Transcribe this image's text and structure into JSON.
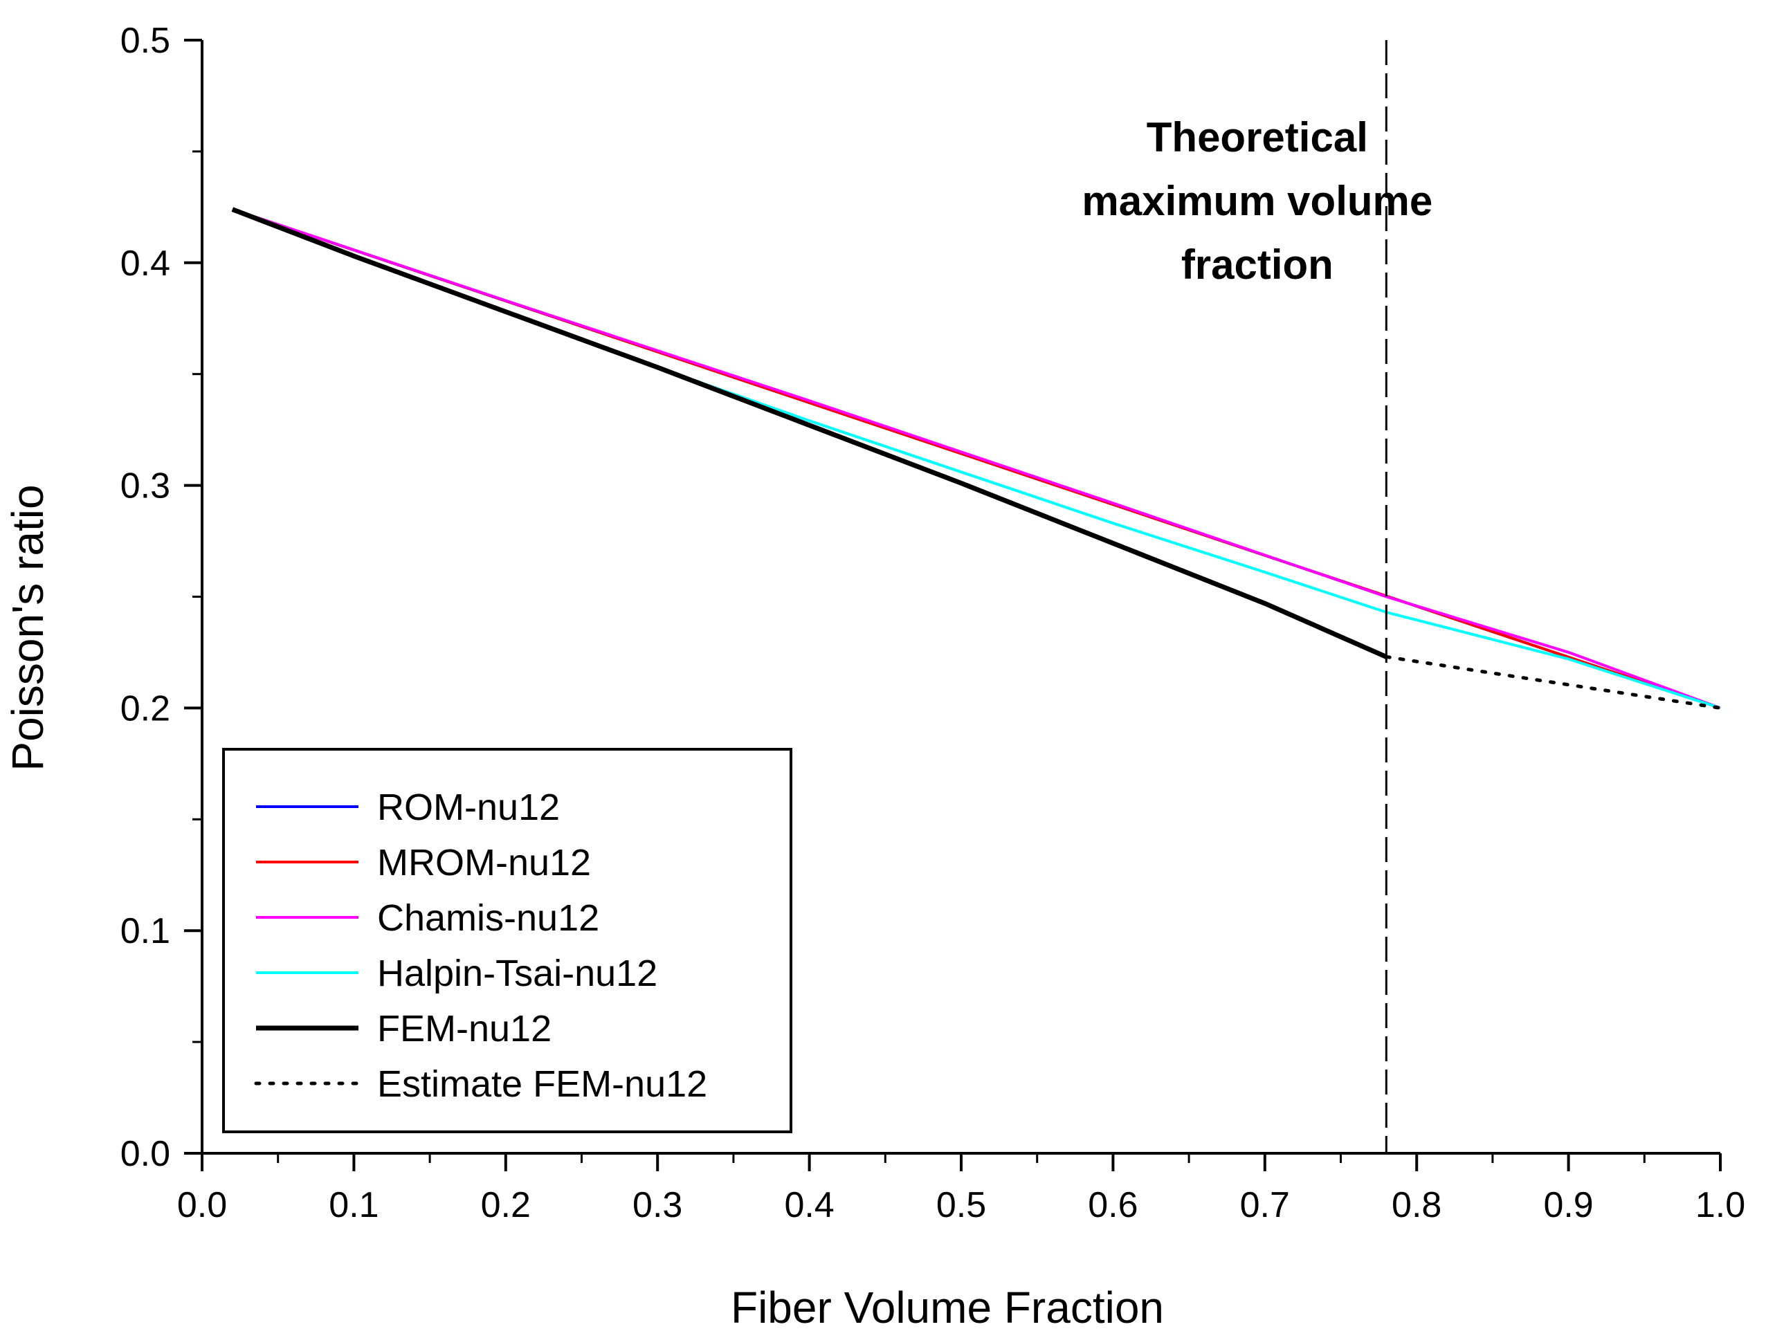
{
  "chart_data": {
    "type": "line",
    "title": "",
    "xlabel": "Fiber Volume Fraction",
    "ylabel": "Poisson's ratio",
    "xlim": [
      0.0,
      1.0
    ],
    "ylim": [
      0.0,
      0.5
    ],
    "x_ticks": [
      "0.0",
      "0.1",
      "0.2",
      "0.3",
      "0.4",
      "0.5",
      "0.6",
      "0.7",
      "0.8",
      "0.9",
      "1.0"
    ],
    "y_ticks": [
      "0.0",
      "0.1",
      "0.2",
      "0.3",
      "0.4",
      "0.5"
    ],
    "grid": false,
    "legend_position": "bottom-left",
    "series": [
      {
        "name": "ROM-nu12",
        "color": "#0000ff",
        "style": "solid",
        "x": [
          0.02,
          1.0
        ],
        "y": [
          0.424,
          0.2
        ]
      },
      {
        "name": "MROM-nu12",
        "color": "#ff0000",
        "style": "solid",
        "x": [
          0.02,
          1.0
        ],
        "y": [
          0.424,
          0.2
        ]
      },
      {
        "name": "Chamis-nu12",
        "color": "#ff00ff",
        "style": "solid",
        "x": [
          0.02,
          0.2,
          0.4,
          0.6,
          0.78,
          0.9,
          1.0
        ],
        "y": [
          0.424,
          0.383,
          0.338,
          0.292,
          0.25,
          0.225,
          0.2
        ]
      },
      {
        "name": "Halpin-Tsai-nu12",
        "color": "#00ffff",
        "style": "solid",
        "x": [
          0.02,
          0.1,
          0.2,
          0.3,
          0.4,
          0.5,
          0.6,
          0.7,
          0.78,
          0.9,
          1.0
        ],
        "y": [
          0.424,
          0.403,
          0.378,
          0.353,
          0.329,
          0.306,
          0.283,
          0.261,
          0.243,
          0.222,
          0.2
        ]
      },
      {
        "name": "FEM-nu12",
        "color": "#000000",
        "style": "solid-thick",
        "x": [
          0.02,
          0.1,
          0.2,
          0.3,
          0.4,
          0.5,
          0.6,
          0.7,
          0.78
        ],
        "y": [
          0.424,
          0.403,
          0.378,
          0.353,
          0.327,
          0.301,
          0.274,
          0.247,
          0.223
        ]
      },
      {
        "name": "Estimate FEM-nu12",
        "color": "#000000",
        "style": "dotted",
        "x": [
          0.78,
          1.0
        ],
        "y": [
          0.223,
          0.2
        ]
      }
    ],
    "annotations": [
      {
        "type": "vline",
        "x": 0.78,
        "style": "dashed"
      },
      {
        "type": "text",
        "lines": [
          "Theoretical",
          "maximum volume",
          "fraction"
        ],
        "x": 0.695,
        "y": 0.45
      }
    ]
  }
}
